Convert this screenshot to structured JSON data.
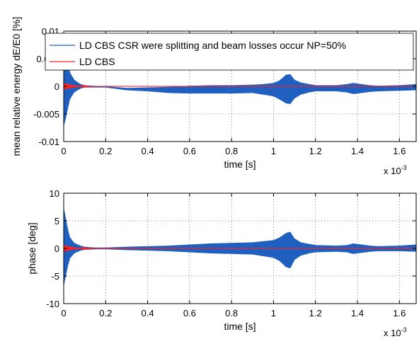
{
  "chart_data": [
    {
      "type": "line",
      "xlabel": "time [s]",
      "ylabel": "mean relative energy dE/E0 [%]",
      "x_exponent_label": "x 10",
      "x_exponent_power": "-3",
      "xlim": [
        0,
        0.00168
      ],
      "ylim": [
        -0.01,
        0.01
      ],
      "xticks": [
        0,
        0.0002,
        0.0004,
        0.0006,
        0.0008,
        0.001,
        0.0012,
        0.0014,
        0.0016
      ],
      "xtick_labels": [
        "0",
        "0.2",
        "0.4",
        "0.6",
        "0.8",
        "1",
        "1.2",
        "1.4",
        "1.6"
      ],
      "yticks": [
        -0.01,
        -0.005,
        0,
        0.005,
        0.01
      ],
      "ytick_labels": [
        "-0.01",
        "-0.005",
        "0",
        "0.005",
        "0.01"
      ],
      "grid": true,
      "legend_position": "top-right",
      "series": [
        {
          "name": "LD CBS CSR were splitting and beam losses occur NP=50%",
          "color": "#1f5fbf",
          "mean": 0.0,
          "envelope": {
            "x": [
              0,
              1e-05,
              2e-05,
              3e-05,
              5e-05,
              8e-05,
              0.0001,
              0.00013,
              0.00016,
              0.0002,
              0.0003,
              0.0004,
              0.0005,
              0.0006,
              0.0007,
              0.0008,
              0.0009,
              0.00095,
              0.001,
              0.00103,
              0.00106,
              0.00108,
              0.0011,
              0.00113,
              0.00117,
              0.0012,
              0.0013,
              0.00135,
              0.00138,
              0.00142,
              0.00146,
              0.0015,
              0.0016,
              0.00168
            ],
            "upper": [
              0.0085,
              0.0068,
              0.0045,
              0.0025,
              0.0012,
              0.0004,
              0.0002,
              0.0001,
              5e-05,
              0.0,
              -0.0003,
              -0.0002,
              -0.0001,
              0.0001,
              0.0002,
              0.0002,
              0.0003,
              0.0004,
              0.0006,
              0.0011,
              0.0021,
              0.0022,
              0.0012,
              0.0007,
              0.0004,
              0.0002,
              0.0002,
              0.0004,
              0.0006,
              0.0004,
              0.0002,
              0.0001,
              0.0002,
              0.0004
            ],
            "lower": [
              -0.0072,
              -0.0058,
              -0.004,
              -0.0023,
              -0.0011,
              -0.0004,
              -0.0002,
              -0.0002,
              -0.0002,
              -0.0002,
              -0.0007,
              -0.0009,
              -0.0012,
              -0.0013,
              -0.0013,
              -0.0013,
              -0.0012,
              -0.0015,
              -0.0018,
              -0.0024,
              -0.0031,
              -0.0032,
              -0.0022,
              -0.0015,
              -0.0011,
              -0.0009,
              -0.0009,
              -0.0011,
              -0.0014,
              -0.0012,
              -0.001,
              -0.0009,
              -0.0008,
              -0.0007
            ]
          }
        },
        {
          "name": "LD CBS",
          "color": "#ff2020",
          "mean": 0.0,
          "envelope": {
            "x": [
              0,
              1e-05,
              2e-05,
              4e-05,
              6e-05,
              9e-05,
              0.00012,
              0.00016,
              0.00168
            ],
            "upper": [
              0.0006,
              0.0005,
              0.0004,
              0.00025,
              0.00015,
              8e-05,
              4e-05,
              1e-05,
              1e-05
            ],
            "lower": [
              -0.0006,
              -0.0005,
              -0.0004,
              -0.00025,
              -0.00015,
              -8e-05,
              -4e-05,
              -1e-05,
              -1e-05
            ]
          }
        }
      ]
    },
    {
      "type": "line",
      "xlabel": "time [s]",
      "ylabel": "phase [deg]",
      "x_exponent_label": "x 10",
      "x_exponent_power": "-3",
      "xlim": [
        0,
        0.00168
      ],
      "ylim": [
        -10,
        10
      ],
      "xticks": [
        0,
        0.0002,
        0.0004,
        0.0006,
        0.0008,
        0.001,
        0.0012,
        0.0014,
        0.0016
      ],
      "xtick_labels": [
        "0",
        "0.2",
        "0.4",
        "0.6",
        "0.8",
        "1",
        "1.2",
        "1.4",
        "1.6"
      ],
      "yticks": [
        -10,
        -5,
        0,
        5,
        10
      ],
      "ytick_labels": [
        "-10",
        "-5",
        "0",
        "5",
        "10"
      ],
      "grid": true,
      "series": [
        {
          "color": "#1f5fbf",
          "mean": 0.0,
          "envelope": {
            "x": [
              0,
              1e-05,
              2e-05,
              3e-05,
              5e-05,
              8e-05,
              0.0001,
              0.00013,
              0.00016,
              0.0002,
              0.0003,
              0.0004,
              0.0005,
              0.0006,
              0.0007,
              0.0008,
              0.0009,
              0.00095,
              0.001,
              0.00103,
              0.00106,
              0.00108,
              0.0011,
              0.00113,
              0.00117,
              0.0012,
              0.0013,
              0.00135,
              0.00138,
              0.00142,
              0.00146,
              0.0015,
              0.0016,
              0.00168
            ],
            "upper": [
              7.4,
              5.5,
              3.5,
              2.0,
              1.0,
              0.5,
              0.3,
              0.2,
              0.15,
              0.15,
              0.3,
              0.4,
              0.5,
              0.7,
              0.9,
              1.0,
              1.1,
              1.3,
              1.5,
              2.0,
              2.8,
              3.0,
              1.8,
              1.1,
              0.8,
              0.6,
              0.5,
              0.6,
              0.9,
              0.7,
              0.5,
              0.4,
              0.5,
              0.7
            ],
            "lower": [
              -6.8,
              -5.0,
              -3.2,
              -1.8,
              -0.9,
              -0.4,
              -0.25,
              -0.2,
              -0.15,
              -0.15,
              -0.3,
              -0.4,
              -0.5,
              -0.7,
              -0.9,
              -1.0,
              -1.1,
              -1.4,
              -1.7,
              -2.3,
              -3.4,
              -3.6,
              -2.1,
              -1.3,
              -0.9,
              -0.7,
              -0.6,
              -0.7,
              -1.0,
              -0.8,
              -0.6,
              -0.5,
              -0.5,
              -0.6
            ]
          }
        },
        {
          "color": "#ff2020",
          "mean": 0.0,
          "envelope": {
            "x": [
              0,
              1e-05,
              2e-05,
              4e-05,
              6e-05,
              9e-05,
              0.00012,
              0.00016,
              0.00168
            ],
            "upper": [
              0.6,
              0.5,
              0.4,
              0.25,
              0.15,
              0.08,
              0.04,
              0.01,
              0.01
            ],
            "lower": [
              -0.6,
              -0.5,
              -0.4,
              -0.25,
              -0.15,
              -0.08,
              -0.04,
              -0.01,
              -0.01
            ]
          }
        }
      ]
    }
  ]
}
